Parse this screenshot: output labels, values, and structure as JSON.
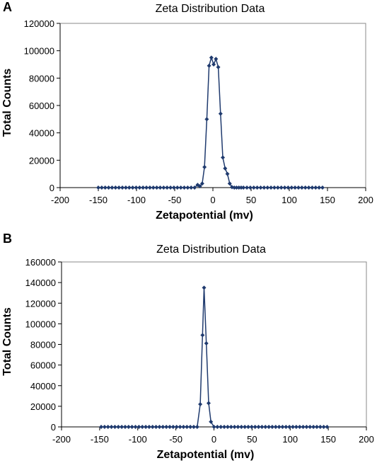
{
  "chart_data": [
    {
      "type": "line",
      "panel_label": "A",
      "title": "Zeta Distribution Data",
      "xlabel": "Zetapotential (mv)",
      "ylabel": "Total Counts",
      "xlim": [
        -200,
        200
      ],
      "ylim": [
        0,
        120000
      ],
      "xticks": [
        -200,
        -150,
        -100,
        -50,
        0,
        50,
        100,
        150,
        200
      ],
      "yticks": [
        0,
        20000,
        40000,
        60000,
        80000,
        100000,
        120000
      ],
      "grid": false,
      "legend": "none",
      "marker": "diamond",
      "color": "#1f3a6e",
      "series": [
        {
          "x": [
            -150,
            -145.5,
            -141,
            -136.5,
            -132,
            -127.5,
            -123,
            -118.5,
            -114,
            -109.5,
            -105,
            -100.5,
            -96,
            -91.5,
            -87,
            -82.5,
            -78,
            -73.5,
            -69,
            -64.5,
            -60,
            -55.5,
            -51,
            -46.5,
            -42,
            -37.5,
            -33,
            -28.5,
            -24,
            -20,
            -17,
            -14,
            -11,
            -8,
            -5,
            -2,
            1,
            4,
            7,
            10,
            13,
            16,
            19,
            22,
            25,
            28,
            31,
            34,
            37,
            40,
            44.5,
            49,
            53.5,
            58,
            62.5,
            67,
            71.5,
            76,
            80.5,
            85,
            89.5,
            94,
            98.5,
            103,
            107.5,
            112,
            116.5,
            121,
            125.5,
            130,
            134.5,
            139,
            143.5
          ],
          "y": [
            0,
            0,
            0,
            0,
            0,
            0,
            0,
            0,
            0,
            0,
            0,
            0,
            0,
            0,
            0,
            0,
            0,
            0,
            0,
            0,
            0,
            0,
            0,
            0,
            0,
            0,
            0,
            0,
            0,
            2000,
            1000,
            3000,
            15000,
            50000,
            89000,
            95000,
            90000,
            94000,
            88000,
            54000,
            22000,
            14000,
            10000,
            3000,
            300,
            0,
            0,
            0,
            0,
            0,
            0,
            0,
            0,
            0,
            0,
            0,
            0,
            0,
            0,
            0,
            0,
            0,
            0,
            0,
            0,
            0,
            0,
            0,
            0,
            0,
            0,
            0,
            0
          ]
        }
      ]
    },
    {
      "type": "line",
      "panel_label": "B",
      "title": "Zeta Distribution Data",
      "xlabel": "Zetapotential (mv)",
      "ylabel": "Total Counts",
      "xlim": [
        -200,
        200
      ],
      "ylim": [
        0,
        160000
      ],
      "xticks": [
        -200,
        -150,
        -100,
        -50,
        0,
        50,
        100,
        150,
        200
      ],
      "yticks": [
        0,
        20000,
        40000,
        60000,
        80000,
        100000,
        120000,
        140000,
        160000
      ],
      "grid": false,
      "legend": "none",
      "marker": "diamond",
      "color": "#1f3a6e",
      "series": [
        {
          "x": [
            -148,
            -143.5,
            -139,
            -134.5,
            -130,
            -125.5,
            -121,
            -116.5,
            -112,
            -107.5,
            -103,
            -98.5,
            -94,
            -89.5,
            -85,
            -80.5,
            -76,
            -71.5,
            -67,
            -62.5,
            -58,
            -53.5,
            -49,
            -44.5,
            -40,
            -35.5,
            -31,
            -26.5,
            -22,
            -18,
            -15,
            -13,
            -10,
            -7,
            -4,
            0,
            4.5,
            9,
            13.5,
            18,
            22.5,
            27,
            31.5,
            36,
            40.5,
            45,
            49.5,
            54,
            58.5,
            63,
            67.5,
            72,
            76.5,
            81,
            85.5,
            90,
            94.5,
            99,
            103.5,
            108,
            112.5,
            117,
            121.5,
            126,
            130.5,
            135,
            139.5,
            144,
            148.5
          ],
          "y": [
            0,
            0,
            0,
            0,
            0,
            0,
            0,
            0,
            0,
            0,
            0,
            0,
            0,
            0,
            0,
            0,
            0,
            0,
            0,
            0,
            0,
            0,
            0,
            0,
            0,
            0,
            0,
            0,
            0,
            22000,
            89000,
            135000,
            81000,
            23000,
            5000,
            0,
            0,
            0,
            0,
            0,
            0,
            0,
            0,
            0,
            0,
            0,
            0,
            0,
            0,
            0,
            0,
            0,
            0,
            0,
            0,
            0,
            0,
            0,
            0,
            0,
            0,
            0,
            0,
            0,
            0,
            0,
            0,
            0,
            0
          ]
        }
      ]
    }
  ]
}
